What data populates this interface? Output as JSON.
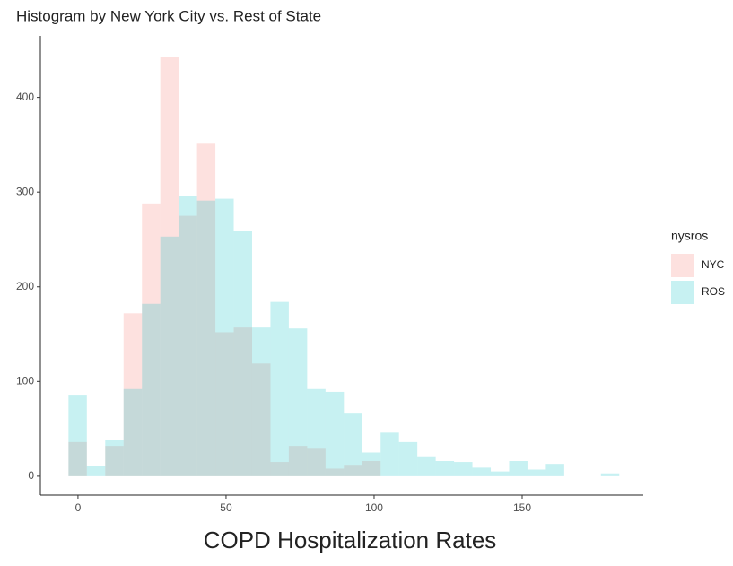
{
  "chart_data": {
    "type": "histogram",
    "title": "Histogram by New York City vs. Rest of State",
    "x_label": "COPD Hospitalization Rates",
    "legend_title": "nysros",
    "bins": [
      -3.2,
      3,
      9.2,
      15.4,
      21.6,
      27.8,
      34,
      40.2,
      46.4,
      52.6,
      58.8,
      65,
      71.2,
      77.4,
      83.6,
      89.8,
      96,
      102.2,
      108.4,
      114.6,
      120.8,
      127,
      133.2,
      139.4,
      145.6,
      151.8,
      158,
      164.2,
      170.4,
      176.6,
      182.8
    ],
    "series": [
      {
        "name": "NYC",
        "color": "#F8766D",
        "values": [
          36,
          0,
          32,
          172,
          288,
          443,
          275,
          352,
          152,
          157,
          119,
          15,
          32,
          29,
          8,
          12,
          16,
          0,
          0,
          0,
          0,
          0,
          0,
          0,
          0,
          0,
          0,
          0,
          0,
          0
        ]
      },
      {
        "name": "ROS",
        "color": "#00BFC4",
        "values": [
          86,
          11,
          38,
          92,
          182,
          253,
          296,
          291,
          293,
          259,
          157,
          184,
          156,
          92,
          89,
          67,
          25,
          46,
          36,
          21,
          16,
          15,
          9,
          5,
          16,
          7,
          13,
          0,
          0,
          3
        ]
      }
    ],
    "xlim": [
      -12.7,
      190.9
    ],
    "xticks": [
      0,
      50,
      100,
      150
    ],
    "ylim": [
      -20,
      465
    ],
    "yticks": [
      0,
      100,
      200,
      300,
      400
    ],
    "grid": false,
    "legend": "right"
  }
}
